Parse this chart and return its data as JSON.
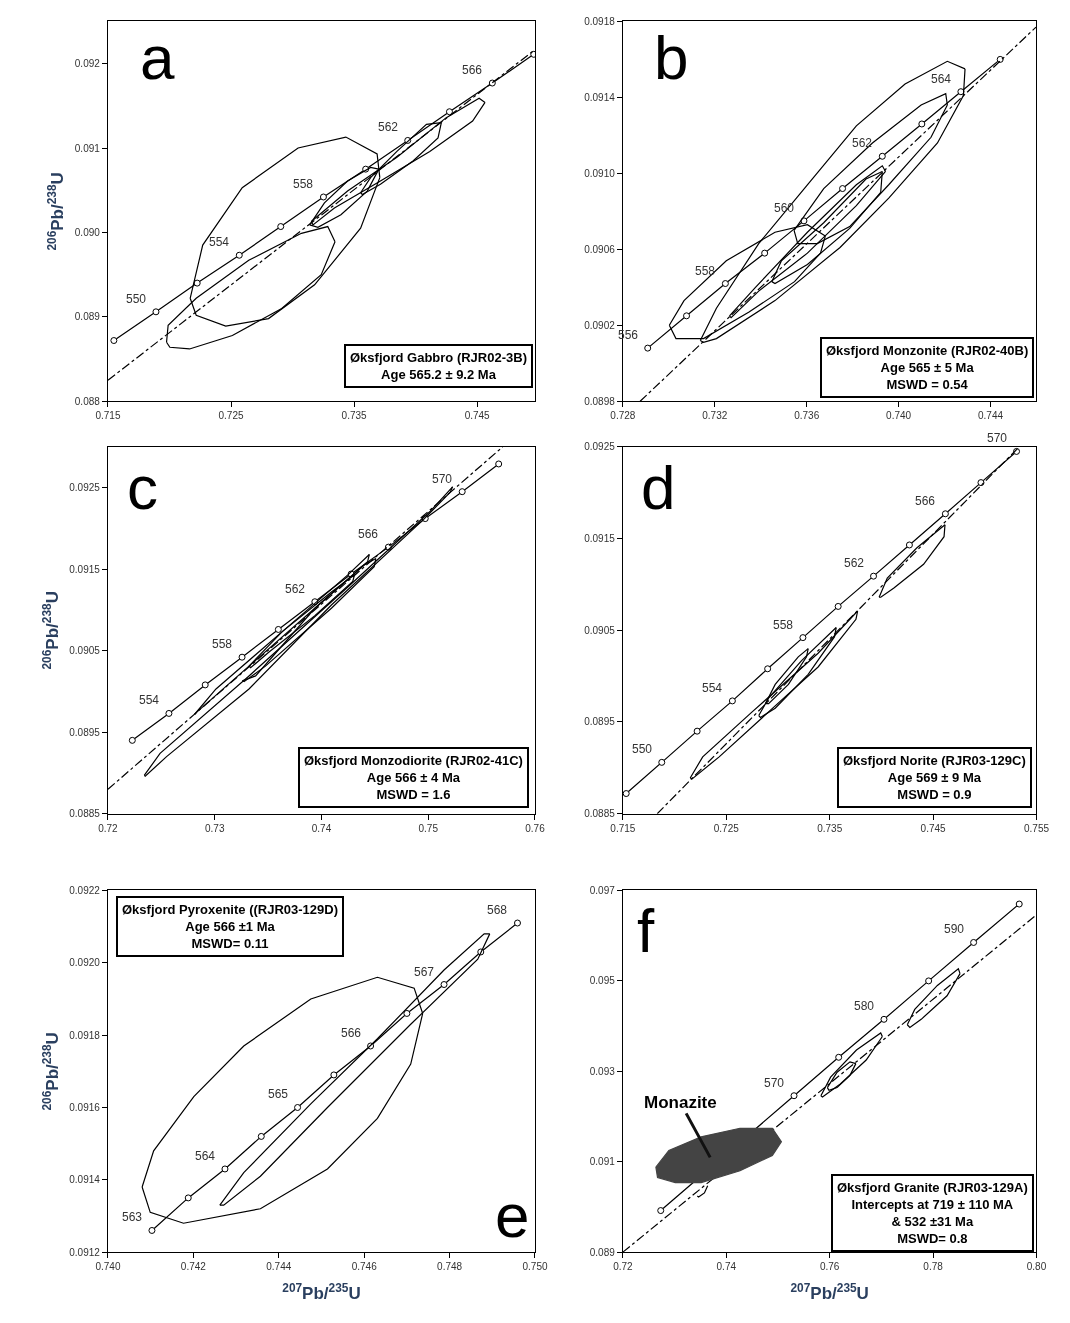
{
  "chart_data": [
    {
      "type": "line",
      "title": "a",
      "ylabel": "$^{206}$Pb/$^{238}$U",
      "xlim": [
        0.715,
        0.7497
      ],
      "ylim": [
        0.088,
        0.0925
      ],
      "xticks": [
        0.715,
        0.725,
        0.735,
        0.745
      ],
      "yticks": [
        0.088,
        0.089,
        {
          "value": 0.09,
          "label": "0.090"
        },
        0.091,
        0.092
      ],
      "series": [
        {
          "color": "#000000",
          "marker": "circle",
          "x": [
            0.71548,
            0.7189,
            0.72225,
            0.72567,
            0.72904,
            0.73251,
            0.73594,
            0.73936,
            0.74275,
            0.74623,
            0.7496
          ],
          "values": [
            0.08872,
            0.08906,
            0.0894,
            0.08973,
            0.09007,
            0.09042,
            0.09075,
            0.09109,
            0.09143,
            0.09177,
            0.09211
          ]
        },
        {
          "color": "#000000",
          "line_style": "dashed",
          "x": [
            0.715,
            0.74965
          ],
          "values": [
            0.08825,
            0.09216
          ]
        },
        {
          "color": "#000000",
          "x": [
            0.72168,
            0.7227,
            0.72591,
            0.73045,
            0.73433,
            0.73687,
            0.73709
          ],
          "values": [
            0.08922,
            0.08985,
            0.09053,
            0.091,
            0.09113,
            0.09093,
            0.09065
          ]
        },
        {
          "color": "#000000",
          "x": [
            0.72168,
            0.72217,
            0.72457,
            0.72805,
            0.73179,
            0.73553,
            0.73709
          ],
          "values": [
            0.08922,
            0.08902,
            0.08889,
            0.08898,
            0.08938,
            0.09005,
            0.09065
          ]
        },
        {
          "color": "#000000",
          "x": [
            0.71976,
            0.71989,
            0.72217,
            0.72644,
            0.73072,
            0.73286,
            0.73345
          ],
          "values": [
            0.0887,
            0.0889,
            0.08922,
            0.08967,
            0.08999,
            0.09007,
            0.08989
          ]
        },
        {
          "color": "#000000",
          "x": [
            0.71976,
            0.72003,
            0.72163,
            0.72511,
            0.72912,
            0.73233,
            0.73345
          ],
          "values": [
            0.0887,
            0.08864,
            0.08862,
            0.08878,
            0.0891,
            0.0895,
            0.08989
          ]
        },
        {
          "color": "#000000",
          "x": [
            0.73139,
            0.73259,
            0.73447,
            0.73634,
            0.73701
          ],
          "values": [
            0.09009,
            0.09035,
            0.09061,
            0.09077,
            0.09075
          ]
        },
        {
          "color": "#000000",
          "x": [
            0.73139,
            0.73206,
            0.73393,
            0.73607,
            0.73701
          ],
          "values": [
            0.09009,
            0.09006,
            0.09021,
            0.09049,
            0.09075
          ]
        },
        {
          "color": "#000000",
          "x": [
            0.73553,
            0.73634,
            0.73848,
            0.74088,
            0.74209
          ],
          "values": [
            0.09047,
            0.09065,
            0.09096,
            0.09128,
            0.0913
          ]
        },
        {
          "color": "#000000",
          "x": [
            0.73553,
            0.73567,
            0.73714,
            0.73981,
            0.74182,
            0.74209
          ],
          "values": [
            0.09047,
            0.09045,
            0.09057,
            0.09085,
            0.09112,
            0.0913
          ]
        },
        {
          "color": "#000000",
          "x": [
            0.73152,
            0.73447,
            0.73848,
            0.74249,
            0.74516,
            0.74564
          ],
          "values": [
            0.09013,
            0.09049,
            0.09089,
            0.09136,
            0.09159,
            0.09154
          ]
        },
        {
          "color": "#000000",
          "x": [
            0.73152,
            0.73166,
            0.7334,
            0.73714,
            0.74115,
            0.74463,
            0.74564
          ],
          "values": [
            0.09013,
            0.09009,
            0.09029,
            0.09061,
            0.09096,
            0.09132,
            0.09154
          ]
        }
      ],
      "annotations": [
        {
          "text": "550",
          "x": 0.7189,
          "y": 0.08906
        },
        {
          "text": "554",
          "x": 0.72567,
          "y": 0.08973
        },
        {
          "text": "558",
          "x": 0.73251,
          "y": 0.09042
        },
        {
          "text": "562",
          "x": 0.73936,
          "y": 0.09109
        },
        {
          "text": "566",
          "x": 0.74623,
          "y": 0.09177
        },
        "Øksfjord Gabbro (RJR02-3B)\nAge 565.2 ± 9.2 Ma"
      ]
    },
    {
      "type": "line",
      "title": "b",
      "xlim": [
        0.728,
        0.746
      ],
      "ylim": [
        0.0898,
        0.0918
      ],
      "xticks": [
        0.728,
        0.732,
        0.736,
        {
          "value": 0.74,
          "label": "0.740"
        },
        0.744
      ],
      "yticks": [
        0.0898,
        0.0902,
        0.0906,
        {
          "value": 0.091,
          "label": "0.0910"
        },
        0.0914,
        0.0918
      ],
      "series": [
        {
          "color": "#000000",
          "marker": "circle",
          "x": [
            0.72908,
            0.73077,
            0.73246,
            0.73417,
            0.73588,
            0.73756,
            0.73929,
            0.74101,
            0.74271,
            0.74442
          ],
          "values": [
            0.09008,
            0.09025,
            0.09042,
            0.09058,
            0.09075,
            0.09092,
            0.09109,
            0.09126,
            0.09143,
            0.0916
          ]
        },
        {
          "color": "#000000",
          "line_style": "dashed",
          "x": [
            0.72875,
            0.74598
          ],
          "values": [
            0.0898,
            0.09177
          ]
        },
        {
          "color": "#000000",
          "x": [
            0.73137,
            0.73207,
            0.73391,
            0.73603,
            0.73816,
            0.74028,
            0.74212,
            0.74289
          ],
          "values": [
            0.09012,
            0.09029,
            0.09063,
            0.09094,
            0.09125,
            0.09147,
            0.09159,
            0.09155
          ]
        },
        {
          "color": "#000000",
          "x": [
            0.73137,
            0.73151,
            0.73207,
            0.73462,
            0.73745,
            0.73957,
            0.74169,
            0.74282,
            0.74289
          ],
          "values": [
            0.09012,
            0.09011,
            0.09013,
            0.09033,
            0.09061,
            0.09087,
            0.09116,
            0.09141,
            0.09155
          ]
        },
        {
          "color": "#000000",
          "x": [
            0.73002,
            0.73066,
            0.7325,
            0.73462,
            0.73603,
            0.73681
          ],
          "values": [
            0.0902,
            0.09033,
            0.09054,
            0.09069,
            0.09073,
            0.09067
          ]
        },
        {
          "color": "#000000",
          "x": [
            0.73002,
            0.73031,
            0.73151,
            0.73349,
            0.73547,
            0.7366,
            0.73681
          ],
          "values": [
            0.0902,
            0.09013,
            0.09013,
            0.09027,
            0.09043,
            0.09058,
            0.09067
          ]
        },
        {
          "color": "#000000",
          "x": [
            0.73545,
            0.73674,
            0.73886,
            0.74098,
            0.74205,
            0.74212
          ],
          "values": [
            0.0907,
            0.09092,
            0.09116,
            0.09136,
            0.09142,
            0.09136
          ]
        },
        {
          "color": "#000000",
          "x": [
            0.73545,
            0.73561,
            0.73646,
            0.73787,
            0.73957,
            0.74141,
            0.74212
          ],
          "values": [
            0.0907,
            0.09063,
            0.09063,
            0.09072,
            0.09094,
            0.09119,
            0.09136
          ]
        },
        {
          "color": "#000000",
          "x": [
            0.73264,
            0.73377,
            0.73603,
            0.73816,
            0.73929,
            0.73943
          ],
          "values": [
            0.09025,
            0.0904,
            0.09069,
            0.09094,
            0.09104,
            0.09101
          ]
        },
        {
          "color": "#000000",
          "x": [
            0.73264,
            0.73271,
            0.73391,
            0.73603,
            0.73816,
            0.73943
          ],
          "values": [
            0.09025,
            0.09024,
            0.09038,
            0.09058,
            0.09083,
            0.09101
          ]
        },
        {
          "color": "#000000",
          "x": [
            0.73448,
            0.7349,
            0.73674,
            0.73858,
            0.73929
          ],
          "values": [
            0.09043,
            0.09054,
            0.09074,
            0.09097,
            0.09101
          ]
        },
        {
          "color": "#000000",
          "x": [
            0.73448,
            0.73462,
            0.73603,
            0.73787,
            0.73922,
            0.73929
          ],
          "values": [
            0.09043,
            0.09042,
            0.09052,
            0.09071,
            0.0909,
            0.09101
          ]
        }
      ],
      "annotations": [
        {
          "text": "556",
          "x": 0.72908,
          "y": 0.09008
        },
        {
          "text": "558",
          "x": 0.73246,
          "y": 0.09042
        },
        {
          "text": "560",
          "x": 0.73588,
          "y": 0.09075
        },
        {
          "text": "562",
          "x": 0.73929,
          "y": 0.09109
        },
        {
          "text": "564",
          "x": 0.74271,
          "y": 0.09143
        },
        "Øksfjord Monzonite (RJR02-40B)\nAge 565 ± 5 Ma\nMSWD = 0.54"
      ]
    },
    {
      "type": "line",
      "title": "c",
      "ylabel": "$^{206}$Pb/$^{238}$U",
      "xlim": [
        0.72,
        0.76
      ],
      "ylim": [
        0.0885,
        0.093
      ],
      "xticks": [
        0.72,
        0.73,
        0.74,
        0.75,
        0.76
      ],
      "yticks": [
        0.0885,
        0.0895,
        0.0905,
        0.0915,
        0.0925
      ],
      "series": [
        {
          "color": "#000000",
          "marker": "circle",
          "x": [
            0.72228,
            0.72571,
            0.72911,
            0.73256,
            0.73596,
            0.73938,
            0.74278,
            0.74627,
            0.74972,
            0.75318,
            0.7566
          ],
          "values": [
            0.0894,
            0.08973,
            0.09008,
            0.09042,
            0.09076,
            0.0911,
            0.09144,
            0.09177,
            0.09212,
            0.09245,
            0.09279
          ]
        },
        {
          "color": "#000000",
          "line_style": "dashed",
          "x": [
            0.72,
            0.75698
          ],
          "values": [
            0.0888,
            0.093
          ]
        },
        {
          "color": "#000000",
          "x": [
            0.7234,
            0.72488,
            0.73321,
            0.74247,
            0.75019,
            0.75228
          ],
          "values": [
            0.08897,
            0.08924,
            0.09019,
            0.09128,
            0.09221,
            0.09251
          ]
        },
        {
          "color": "#000000",
          "x": [
            0.7234,
            0.72349,
            0.72549,
            0.73321,
            0.74093,
            0.74957,
            0.75204,
            0.75228
          ],
          "values": [
            0.08897,
            0.08896,
            0.0892,
            0.09003,
            0.09106,
            0.09211,
            0.09244,
            0.09251
          ]
        },
        {
          "color": "#000000",
          "x": [
            0.72812,
            0.73012,
            0.7363,
            0.74247,
            0.74448
          ],
          "values": [
            0.08972,
            0.09003,
            0.09073,
            0.09143,
            0.09168
          ]
        },
        {
          "color": "#000000",
          "x": [
            0.72812,
            0.72827,
            0.73321,
            0.73938,
            0.74432,
            0.74448
          ],
          "values": [
            0.08972,
            0.08974,
            0.09031,
            0.09102,
            0.09159,
            0.09168
          ]
        },
        {
          "color": "#000000",
          "x": [
            0.73259,
            0.73383,
            0.73938,
            0.74401,
            0.74509
          ],
          "values": [
            0.09013,
            0.09019,
            0.09102,
            0.09155,
            0.09163
          ]
        },
        {
          "color": "#000000",
          "x": [
            0.73259,
            0.73275,
            0.73475,
            0.74093,
            0.74494,
            0.74509
          ],
          "values": [
            0.09013,
            0.09012,
            0.09031,
            0.09102,
            0.09153,
            0.09163
          ]
        },
        {
          "color": "#000000",
          "x": [
            0.73321,
            0.7363,
            0.74093,
            0.74309
          ],
          "values": [
            0.09031,
            0.09073,
            0.09122,
            0.09143
          ]
        },
        {
          "color": "#000000",
          "x": [
            0.73321,
            0.73336,
            0.73506,
            0.73938,
            0.74293,
            0.74309
          ],
          "values": [
            0.09031,
            0.09029,
            0.09048,
            0.09093,
            0.09135,
            0.09143
          ]
        }
      ],
      "annotations": [
        {
          "text": "554",
          "x": 0.72571,
          "y": 0.08973
        },
        {
          "text": "558",
          "x": 0.73256,
          "y": 0.09042
        },
        {
          "text": "562",
          "x": 0.73938,
          "y": 0.0911
        },
        {
          "text": "566",
          "x": 0.74627,
          "y": 0.09177
        },
        {
          "text": "570",
          "x": 0.75318,
          "y": 0.09245
        },
        "Øksfjord Monzodiorite (RJR02-41C)\nAge 566 ± 4 Ma\nMSWD = 1.6"
      ]
    },
    {
      "type": "line",
      "title": "d",
      "xlim": [
        0.715,
        0.755
      ],
      "ylim": [
        0.0885,
        0.0925
      ],
      "xticks": [
        0.715,
        0.725,
        0.735,
        0.745,
        0.755
      ],
      "yticks": [
        0.0885,
        0.0895,
        0.0905,
        0.0915,
        0.0925
      ],
      "series": [
        {
          "color": "#000000",
          "marker": "circle",
          "x": [
            0.71532,
            0.71876,
            0.72218,
            0.72559,
            0.729,
            0.73241,
            0.73582,
            0.73924,
            0.74271,
            0.74619,
            0.74963,
            0.75307
          ],
          "values": [
            0.08872,
            0.08906,
            0.0894,
            0.08973,
            0.09008,
            0.09042,
            0.09076,
            0.09109,
            0.09143,
            0.09177,
            0.09211,
            0.09245
          ]
        },
        {
          "color": "#000000",
          "line_style": "dashed",
          "x": [
            0.71832,
            0.75333
          ],
          "values": [
            0.0885,
            0.0925
          ]
        },
        {
          "color": "#000000",
          "x": [
            0.72151,
            0.72272,
            0.7275,
            0.73388,
            0.7377
          ],
          "values": [
            0.08889,
            0.08912,
            0.08961,
            0.09025,
            0.09071
          ]
        },
        {
          "color": "#000000",
          "x": [
            0.72151,
            0.7217,
            0.72431,
            0.72909,
            0.73388,
            0.73754,
            0.7377
          ],
          "values": [
            0.08889,
            0.08888,
            0.08912,
            0.08961,
            0.0901,
            0.09062,
            0.09071
          ]
        },
        {
          "color": "#000000",
          "x": [
            0.72814,
            0.72909,
            0.73228,
            0.73563
          ],
          "values": [
            0.08957,
            0.08976,
            0.09017,
            0.09053
          ]
        },
        {
          "color": "#000000",
          "x": [
            0.72814,
            0.7283,
            0.72973,
            0.73292,
            0.73547,
            0.73563
          ],
          "values": [
            0.08957,
            0.08955,
            0.08965,
            0.09002,
            0.09043,
            0.09053
          ]
        },
        {
          "color": "#000000",
          "x": [
            0.72878,
            0.72973,
            0.73196,
            0.73292
          ],
          "values": [
            0.0897,
            0.08991,
            0.09021,
            0.0903
          ]
        },
        {
          "color": "#000000",
          "x": [
            0.72878,
            0.72909,
            0.73101,
            0.73276,
            0.73292
          ],
          "values": [
            0.0897,
            0.0897,
            0.08991,
            0.09021,
            0.0903
          ]
        },
        {
          "color": "#000000",
          "x": [
            0.73978,
            0.74057,
            0.74344,
            0.74615
          ],
          "values": [
            0.09086,
            0.09107,
            0.0914,
            0.09165
          ]
        },
        {
          "color": "#000000",
          "x": [
            0.73978,
            0.73994,
            0.74121,
            0.74408,
            0.74606,
            0.74615
          ],
          "values": [
            0.09086,
            0.09086,
            0.09096,
            0.09122,
            0.09152,
            0.09165
          ]
        }
      ],
      "annotations": [
        {
          "text": "550",
          "x": 0.71876,
          "y": 0.08906
        },
        {
          "text": "554",
          "x": 0.72559,
          "y": 0.08973
        },
        {
          "text": "558",
          "x": 0.73241,
          "y": 0.09042
        },
        {
          "text": "562",
          "x": 0.73924,
          "y": 0.09109
        },
        {
          "text": "566",
          "x": 0.74619,
          "y": 0.09177
        },
        {
          "text": "570",
          "x": 0.75307,
          "y": 0.09245
        },
        "Øksfjord Norite (RJR03-129C)\nAge 569 ± 9 Ma\nMSWD = 0.9"
      ]
    },
    {
      "type": "line",
      "title": "e",
      "xlabel": "$^{207}$Pb/$^{235}$U",
      "ylabel": "$^{206}$Pb/$^{238}$U",
      "xlim": [
        0.74,
        0.75
      ],
      "ylim": [
        0.0912,
        0.0922
      ],
      "xticks": [
        {
          "value": 0.74,
          "label": "0.740"
        },
        0.742,
        0.744,
        0.746,
        0.748,
        {
          "value": 0.75,
          "label": "0.750"
        }
      ],
      "yticks": [
        0.0912,
        0.0914,
        0.0916,
        0.0918,
        {
          "value": 0.092,
          "label": "0.0920"
        },
        0.0922
      ],
      "series": [
        {
          "color": "#000000",
          "marker": "circle",
          "x": [
            0.74103,
            0.74188,
            0.74274,
            0.74359,
            0.74444,
            0.74529,
            0.74615,
            0.747,
            0.74787,
            0.74873,
            0.74959
          ],
          "values": [
            0.09126,
            0.09135,
            0.09143,
            0.09152,
            0.0916,
            0.09169,
            0.09177,
            0.09186,
            0.09194,
            0.09203,
            0.09211
          ]
        },
        {
          "color": "#000000",
          "x": [
            0.7408,
            0.74107,
            0.74201,
            0.74318,
            0.74475,
            0.74631,
            0.74717,
            0.74737
          ],
          "values": [
            0.09138,
            0.09148,
            0.09163,
            0.09177,
            0.0919,
            0.09196,
            0.09193,
            0.09186
          ]
        },
        {
          "color": "#000000",
          "x": [
            0.7408,
            0.74099,
            0.74177,
            0.74357,
            0.74514,
            0.74631,
            0.74709,
            0.74737
          ],
          "values": [
            0.09138,
            0.09131,
            0.09128,
            0.09132,
            0.09143,
            0.09157,
            0.09172,
            0.09186
          ]
        },
        {
          "color": "#000000",
          "x": [
            0.74262,
            0.74318,
            0.74475,
            0.74631,
            0.74787,
            0.74881,
            0.74894
          ],
          "values": [
            0.09133,
            0.09142,
            0.09161,
            0.09179,
            0.09198,
            0.09208,
            0.09208
          ]
        },
        {
          "color": "#000000",
          "x": [
            0.74262,
            0.74271,
            0.74357,
            0.74514,
            0.74709,
            0.74866,
            0.74894
          ],
          "values": [
            0.09133,
            0.09133,
            0.09141,
            0.0916,
            0.09183,
            0.09201,
            0.09208
          ]
        }
      ],
      "annotations": [
        {
          "text": "563",
          "x": 0.74103,
          "y": 0.09126
        },
        {
          "text": "564",
          "x": 0.74274,
          "y": 0.09143
        },
        {
          "text": "565",
          "x": 0.74444,
          "y": 0.0916
        },
        {
          "text": "566",
          "x": 0.74615,
          "y": 0.09177
        },
        {
          "text": "567",
          "x": 0.74787,
          "y": 0.09194
        },
        {
          "text": "568",
          "x": 0.74959,
          "y": 0.09211
        },
        "Øksfjord Pyroxenite ((RJR03-129D)\nAge 566 ±1 Ma\nMSWD= 0.11"
      ]
    },
    {
      "type": "line",
      "title": "f",
      "xlabel": "$^{207}$Pb/$^{235}$U",
      "xlim": [
        0.72,
        0.8
      ],
      "ylim": [
        0.089,
        0.097
      ],
      "xticks": [
        0.72,
        0.74,
        0.76,
        0.78,
        {
          "value": 0.8,
          "label": "0.80"
        }
      ],
      "yticks": [
        0.089,
        0.091,
        0.093,
        0.095,
        0.097
      ],
      "series": [
        {
          "color": "#000000",
          "marker": "circle",
          "x": [
            0.72732,
            0.7531,
            0.76174,
            0.7705,
            0.77914,
            0.78784,
            0.79666
          ],
          "values": [
            0.08992,
            0.09246,
            0.09331,
            0.09415,
            0.095,
            0.09585,
            0.0967
          ]
        },
        {
          "color": "#000000",
          "line_style": "dashed",
          "x": [
            0.72,
            0.8
          ],
          "values": [
            0.089,
            0.09646
          ]
        },
        {
          "color": "#000000",
          "x": [
            0.77501,
            0.77645,
            0.78083,
            0.78489,
            0.78521
          ],
          "values": [
            0.09403,
            0.09437,
            0.0949,
            0.09527,
            0.09516
          ]
        },
        {
          "color": "#000000",
          "x": [
            0.77501,
            0.77551,
            0.7777,
            0.7827,
            0.78521
          ],
          "values": [
            0.09403,
            0.09397,
            0.09415,
            0.09467,
            0.09516
          ]
        },
        {
          "color": "#000000",
          "x": [
            0.7583,
            0.76018,
            0.76518,
            0.76987,
            0.77019
          ],
          "values": [
            0.09246,
            0.09287,
            0.09347,
            0.09385,
            0.09377
          ]
        },
        {
          "color": "#000000",
          "x": [
            0.7583,
            0.75861,
            0.76205,
            0.76706,
            0.77019
          ],
          "values": [
            0.09246,
            0.09243,
            0.09272,
            0.09325,
            0.09377
          ]
        },
        {
          "color": "#000000",
          "x": [
            0.75955,
            0.76143,
            0.76393,
            0.76506
          ],
          "values": [
            0.09264,
            0.09298,
            0.09321,
            0.09317
          ]
        },
        {
          "color": "#000000",
          "x": [
            0.75955,
            0.75986,
            0.76143,
            0.76393,
            0.76506
          ],
          "values": [
            0.09264,
            0.09258,
            0.09264,
            0.09291,
            0.09317
          ]
        },
        {
          "color": "#000000",
          "x": [
            0.73439,
            0.73464,
            0.73577,
            0.7364
          ],
          "values": [
            0.09024,
            0.09022,
            0.09031,
            0.09047
          ]
        },
        {
          "type": "area",
          "name": "Monazite",
          "color": "#444444",
          "x": [
            0.72638,
            0.72889,
            0.73514,
            0.74265,
            0.74891,
            0.75066,
            0.74891,
            0.74265,
            0.73514,
            0.73014,
            0.7267,
            0.72638
          ],
          "values": [
            0.09088,
            0.09125,
            0.09155,
            0.09174,
            0.09174,
            0.09144,
            0.09114,
            0.0908,
            0.09054,
            0.09054,
            0.09065,
            0.09088
          ]
        }
      ],
      "annotations": [
        {
          "text": "570",
          "x": 0.7531,
          "y": 0.09246
        },
        {
          "text": "580",
          "x": 0.7705,
          "y": 0.09415
        },
        {
          "text": "590",
          "x": 0.78784,
          "y": 0.09585
        },
        "Øksfjord Granite (RJR03-129A)\nIntercepts at 719 ± 110 MA\n& 532 ±31 Ma\nMSWD= 0.8"
      ]
    }
  ]
}
